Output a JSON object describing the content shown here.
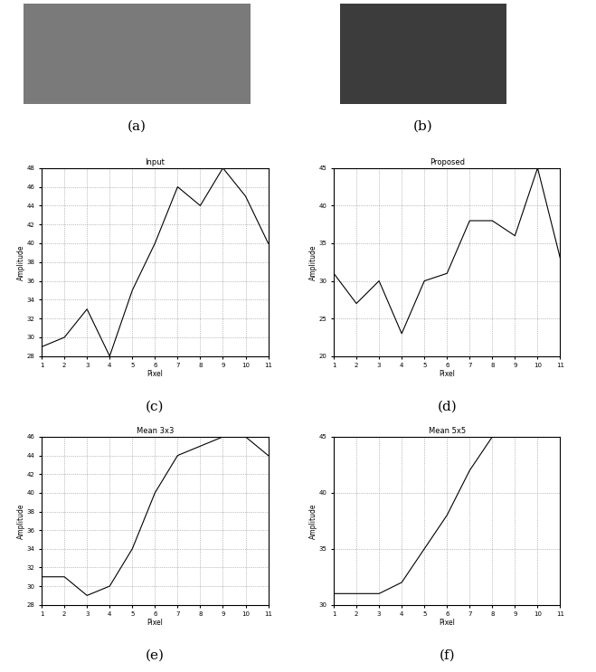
{
  "images": [
    {
      "caption": "(a)"
    },
    {
      "caption": "(b)"
    }
  ],
  "chart_data": [
    {
      "type": "line",
      "title": "Input",
      "caption": "(c)",
      "x_label": "Pixel",
      "y_label": "Amplitude",
      "x": [
        1,
        2,
        3,
        4,
        5,
        6,
        7,
        8,
        9,
        10,
        11
      ],
      "values": [
        29,
        30,
        33,
        28,
        35,
        40,
        46,
        44,
        48,
        45,
        40
      ],
      "xlim": [
        1,
        11
      ],
      "xticks": [
        1,
        2,
        3,
        4,
        5,
        6,
        7,
        8,
        9,
        10,
        11
      ],
      "ylim": [
        28,
        48
      ],
      "yticks": [
        28,
        30,
        32,
        34,
        36,
        38,
        40,
        42,
        44,
        46,
        48
      ],
      "grid": true,
      "color": "#000000"
    },
    {
      "type": "line",
      "title": "Proposed",
      "caption": "(d)",
      "x_label": "Pixel",
      "y_label": "Amplitude",
      "x": [
        1,
        2,
        3,
        4,
        5,
        6,
        7,
        8,
        9,
        10,
        11
      ],
      "values": [
        31,
        27,
        30,
        23,
        30,
        31,
        38,
        38,
        36,
        45,
        33
      ],
      "xlim": [
        1,
        11
      ],
      "xticks": [
        1,
        2,
        3,
        4,
        5,
        6,
        7,
        8,
        9,
        10,
        11
      ],
      "ylim": [
        20,
        45
      ],
      "yticks": [
        20,
        25,
        30,
        35,
        40,
        45
      ],
      "grid": true,
      "color": "#000000"
    },
    {
      "type": "line",
      "title": "Mean 3x3",
      "caption": "(e)",
      "x_label": "Pixel",
      "y_label": "Amplitude",
      "x": [
        1,
        2,
        3,
        4,
        5,
        6,
        7,
        8,
        9,
        10,
        11
      ],
      "values": [
        31,
        31,
        29,
        30,
        34,
        40,
        44,
        45,
        46,
        46,
        44
      ],
      "xlim": [
        1,
        11
      ],
      "xticks": [
        1,
        2,
        3,
        4,
        5,
        6,
        7,
        8,
        9,
        10,
        11
      ],
      "ylim": [
        28,
        46
      ],
      "yticks": [
        28,
        30,
        32,
        34,
        36,
        38,
        40,
        42,
        44,
        46
      ],
      "grid": true,
      "color": "#000000"
    },
    {
      "type": "line",
      "title": "Mean 5x5",
      "caption": "(f)",
      "x_label": "Pixel",
      "y_label": "Amplitude",
      "x": [
        1,
        2,
        3,
        4,
        5,
        6,
        7,
        8,
        9,
        10,
        11
      ],
      "values": [
        31,
        31,
        31,
        32,
        35,
        38,
        42,
        45,
        null,
        null,
        null
      ],
      "xlim": [
        1,
        11
      ],
      "xticks": [
        1,
        2,
        3,
        4,
        5,
        6,
        7,
        8,
        9,
        10,
        11
      ],
      "ylim": [
        30,
        45
      ],
      "yticks": [
        30,
        35,
        40,
        45
      ],
      "grid": true,
      "color": "#000000"
    }
  ]
}
